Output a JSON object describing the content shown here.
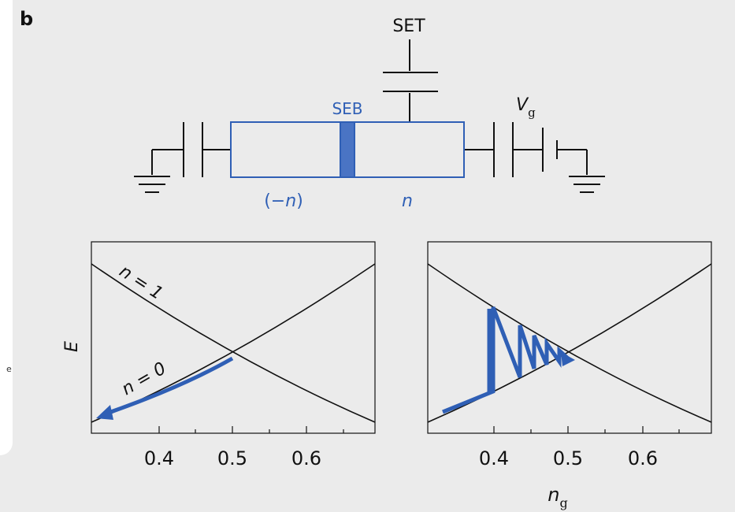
{
  "panel_label": "b",
  "edge_text": "e",
  "circuit": {
    "set_label": "SET",
    "seb_label": "SEB",
    "vg_label": "V",
    "vg_subscript": "g",
    "left_island_label_open": "(−",
    "left_island_label_var": "n",
    "left_island_label_close": ")",
    "right_island_label": "n",
    "colors": {
      "accent": "#2f5fb5",
      "seb_fill": "#4a74c4",
      "line": "#111111"
    }
  },
  "chart_data": [
    {
      "type": "line",
      "title": "",
      "xlabel": "",
      "ylabel": "E",
      "xlim": [
        0.31,
        0.69
      ],
      "x_ticks": [
        "0.4",
        "0.5",
        "0.6"
      ],
      "series": [
        {
          "name": "n = 1",
          "x": [
            0.31,
            0.4,
            0.5,
            0.6,
            0.69
          ],
          "y": [
            0.9,
            0.53,
            0.27,
            0.1,
            0.07
          ]
        },
        {
          "name": "n = 0",
          "x": [
            0.31,
            0.4,
            0.5,
            0.6,
            0.69
          ],
          "y": [
            0.07,
            0.1,
            0.27,
            0.53,
            0.9
          ]
        }
      ],
      "annotations": [
        {
          "text": "n = 1"
        },
        {
          "text": "n = 0"
        }
      ],
      "arrow": {
        "from_x": 0.5,
        "to_x": 0.345,
        "follows": "n = 0"
      }
    },
    {
      "type": "line",
      "title": "",
      "xlabel_main": "n",
      "xlabel_sub": "g",
      "ylabel": "",
      "xlim": [
        0.31,
        0.69
      ],
      "x_ticks": [
        "0.4",
        "0.5",
        "0.6"
      ],
      "series": [
        {
          "x": [
            0.31,
            0.4,
            0.5,
            0.6,
            0.69
          ],
          "y": [
            0.9,
            0.53,
            0.27,
            0.1,
            0.07
          ]
        },
        {
          "x": [
            0.31,
            0.4,
            0.5,
            0.6,
            0.69
          ],
          "y": [
            0.07,
            0.1,
            0.27,
            0.53,
            0.9
          ]
        }
      ],
      "sawtooth_x": [
        0.4,
        0.43,
        0.45,
        0.47,
        0.49,
        0.5
      ]
    }
  ]
}
